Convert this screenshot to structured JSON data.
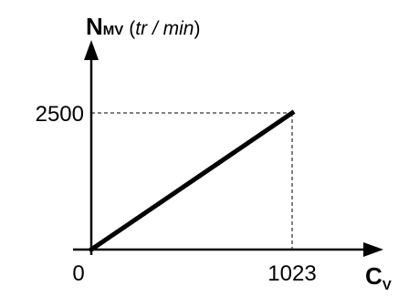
{
  "chart_data": {
    "type": "line",
    "x": [
      0,
      1023
    ],
    "y": [
      0,
      2500
    ],
    "xlim": [
      0,
      1023
    ],
    "ylim": [
      0,
      2500
    ],
    "x_ticks": [
      "0",
      "1023"
    ],
    "y_ticks": [
      "2500"
    ],
    "ylabel": {
      "main": "N",
      "sub": "MV",
      "unit_open": "(",
      "unit": "tr / min",
      "unit_close": ")"
    },
    "xlabel": {
      "main": "C",
      "sub": "V"
    },
    "grid": false,
    "reference_lines": "dashed lines from the end point to both axes"
  }
}
